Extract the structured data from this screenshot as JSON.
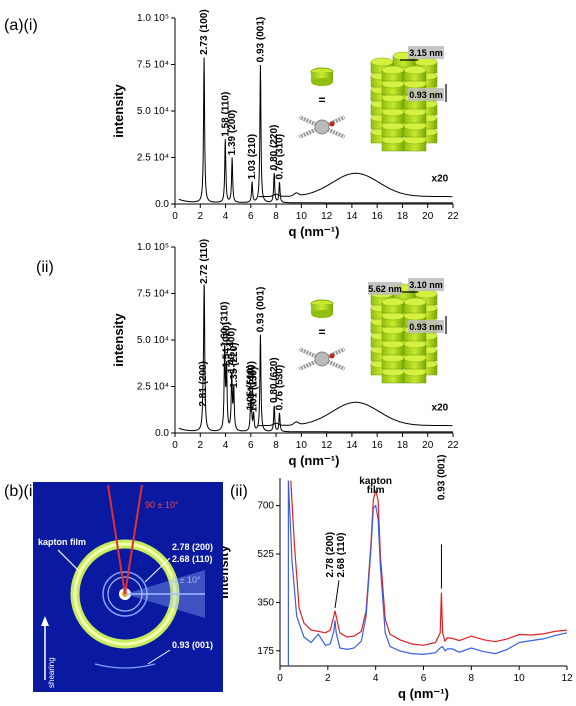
{
  "panel_labels": {
    "a_i": "(a)(i)",
    "a_ii": "(ii)",
    "b_i": "(b)(i)",
    "b_ii": "(ii)"
  },
  "chart_data": [
    {
      "id": "a_i",
      "type": "line",
      "xlabel": "q (nm⁻¹)",
      "ylabel": "intensity",
      "xlim": [
        0,
        22
      ],
      "ylim": [
        0,
        100000
      ],
      "xticks": [
        "0",
        "2",
        "4",
        "6",
        "8",
        "10",
        "12",
        "14",
        "16",
        "18",
        "20",
        "22"
      ],
      "yticks": [
        "0.0",
        "2.5 10⁴",
        "5.0 10⁴",
        "7.5 10⁴",
        "1.0 10⁵"
      ],
      "peaks": [
        {
          "q": 2.3,
          "I": 78000,
          "label": "2.73 (100)"
        },
        {
          "q": 3.98,
          "I": 34000,
          "label": "1.58 (110)"
        },
        {
          "q": 4.52,
          "I": 24000,
          "label": "1.39 (200)"
        },
        {
          "q": 6.1,
          "I": 11000,
          "label": "1.03 (210)"
        },
        {
          "q": 6.76,
          "I": 74000,
          "label": "0.93 (001)"
        },
        {
          "q": 7.85,
          "I": 16000,
          "label": "0.80 (220)"
        },
        {
          "q": 8.27,
          "I": 11000,
          "label": "0.76 (310)"
        }
      ],
      "annotation_x20": "x20",
      "model": {
        "top_label": "3.15 nm",
        "side_label": "0.93 nm",
        "symbol": "="
      }
    },
    {
      "id": "a_ii",
      "type": "line",
      "xlabel": "q (nm⁻¹)",
      "ylabel": "intensity",
      "xlim": [
        0,
        22
      ],
      "ylim": [
        0,
        100000
      ],
      "xticks": [
        "0",
        "2",
        "4",
        "6",
        "8",
        "10",
        "12",
        "14",
        "16",
        "18",
        "20",
        "22"
      ],
      "yticks": [
        "0.0",
        "2.5 10⁴",
        "5.0 10⁴",
        "7.5 10⁴",
        "1.0 10⁵"
      ],
      "peaks": [
        {
          "q": 2.23,
          "I": 12000,
          "label": "2.81 (200)"
        },
        {
          "q": 2.31,
          "I": 78000,
          "label": "2.72 (110)"
        },
        {
          "q": 3.93,
          "I": 44000,
          "label": "1.60 (310)"
        },
        {
          "q": 4.08,
          "I": 33000,
          "label": "1.54 (020)"
        },
        {
          "q": 4.49,
          "I": 30000,
          "label": "1.40 (400)"
        },
        {
          "q": 4.65,
          "I": 22000,
          "label": "1.35 (220)"
        },
        {
          "q": 5.98,
          "I": 10000,
          "label": "1.05 (510)"
        },
        {
          "q": 6.22,
          "I": 9000,
          "label": "1.01 (130)"
        },
        {
          "q": 6.04,
          "I": 12000,
          "label": "1.04 (420)"
        },
        {
          "q": 6.76,
          "I": 52000,
          "label": "0.93 (001)"
        },
        {
          "q": 7.85,
          "I": 14000,
          "label": "0.80 (620)"
        },
        {
          "q": 8.27,
          "I": 10000,
          "label": "0.76 (530)"
        }
      ],
      "annotation_x20": "x20",
      "model": {
        "top_label": "3.10 nm",
        "side_label": "0.93 nm",
        "left_label": "5.62 nm",
        "symbol": "="
      }
    },
    {
      "id": "b_ii",
      "type": "line",
      "xlabel": "q (nm⁻¹)",
      "ylabel": "intensity",
      "xlim": [
        0,
        12
      ],
      "ylim": [
        120,
        800
      ],
      "xticks": [
        "0",
        "2",
        "4",
        "6",
        "8",
        "10",
        "12"
      ],
      "yticks": [
        "175",
        "350",
        "525",
        "700"
      ],
      "series": [
        {
          "color": "#e02020",
          "x": [
            0.45,
            0.6,
            0.8,
            1.0,
            1.3,
            1.6,
            1.9,
            2.1,
            2.25,
            2.3,
            2.35,
            2.5,
            2.8,
            3.1,
            3.4,
            3.6,
            3.8,
            3.9,
            4.0,
            4.1,
            4.2,
            4.4,
            4.6,
            5.0,
            5.5,
            6.0,
            6.5,
            6.7,
            6.75,
            6.8,
            6.9,
            7.0,
            7.2,
            7.5,
            8.0,
            8.5,
            9.0,
            9.5,
            10.0,
            10.5,
            11.0,
            11.5,
            12.0
          ],
          "y": [
            790,
            560,
            330,
            275,
            250,
            245,
            240,
            250,
            300,
            320,
            300,
            240,
            225,
            228,
            245,
            320,
            560,
            720,
            755,
            720,
            520,
            290,
            235,
            215,
            200,
            195,
            205,
            240,
            385,
            240,
            210,
            222,
            220,
            212,
            228,
            215,
            208,
            218,
            234,
            232,
            236,
            245,
            250
          ]
        },
        {
          "color": "#3a5fe0",
          "x": [
            0.35,
            0.5,
            0.7,
            1.0,
            1.3,
            1.6,
            1.9,
            2.1,
            2.25,
            2.3,
            2.35,
            2.5,
            2.8,
            3.1,
            3.4,
            3.6,
            3.8,
            3.9,
            4.0,
            4.1,
            4.2,
            4.4,
            4.6,
            5.0,
            5.5,
            6.0,
            6.5,
            6.7,
            6.8,
            6.9,
            7.0,
            7.2,
            7.5,
            8.0,
            8.5,
            9.0,
            9.5,
            10.0,
            10.5,
            11.0,
            11.5,
            12.0
          ],
          "y": [
            790,
            500,
            300,
            225,
            205,
            235,
            195,
            200,
            245,
            285,
            240,
            185,
            180,
            185,
            210,
            300,
            540,
            690,
            700,
            650,
            480,
            240,
            190,
            175,
            165,
            162,
            168,
            185,
            190,
            175,
            182,
            182,
            170,
            185,
            172,
            165,
            180,
            205,
            212,
            218,
            230,
            240
          ]
        }
      ],
      "annotations": [
        {
          "text": "2.78 (200)",
          "q": 2.3
        },
        {
          "text": "2.68 (110)",
          "q": 2.35
        },
        {
          "text": "kapton film",
          "q": 4.0
        },
        {
          "text": "0.93 (001)",
          "q": 6.75
        }
      ]
    }
  ],
  "scattering_image": {
    "kapton_label": "kapton film",
    "red_label": "90 ± 10°",
    "blue_label": "0 ± 10°",
    "ring_labels": [
      "2.78 (200)",
      "2.68 (110)",
      "0.93 (001)"
    ],
    "shear_label": "shearing",
    "colors": {
      "background": "#0a1aa0",
      "ring": "#d8f070",
      "red_sector": "#e03030",
      "blue_sector": "#8ab0ff"
    }
  }
}
